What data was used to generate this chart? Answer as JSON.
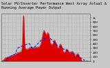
{
  "title": "Solar PV/Inverter Performance West Array Actual & Running Average Power Output",
  "bg_color": "#c8c8c8",
  "plot_bg": "#c8c8c8",
  "bar_color": "#dd0000",
  "line_color": "#0000dd",
  "grid_color": "#aaaaaa",
  "n_points": 500,
  "ylim": [
    0,
    1.1
  ],
  "title_fontsize": 3.8,
  "tick_fontsize": 3.0,
  "ytick_labels": [
    "1k",
    "900",
    "800",
    "700",
    "600",
    "500",
    "400",
    "300",
    "200",
    "100",
    "0"
  ],
  "ytick_vals": [
    1.0,
    0.9,
    0.8,
    0.7,
    0.6,
    0.5,
    0.4,
    0.3,
    0.2,
    0.1,
    0.0
  ]
}
